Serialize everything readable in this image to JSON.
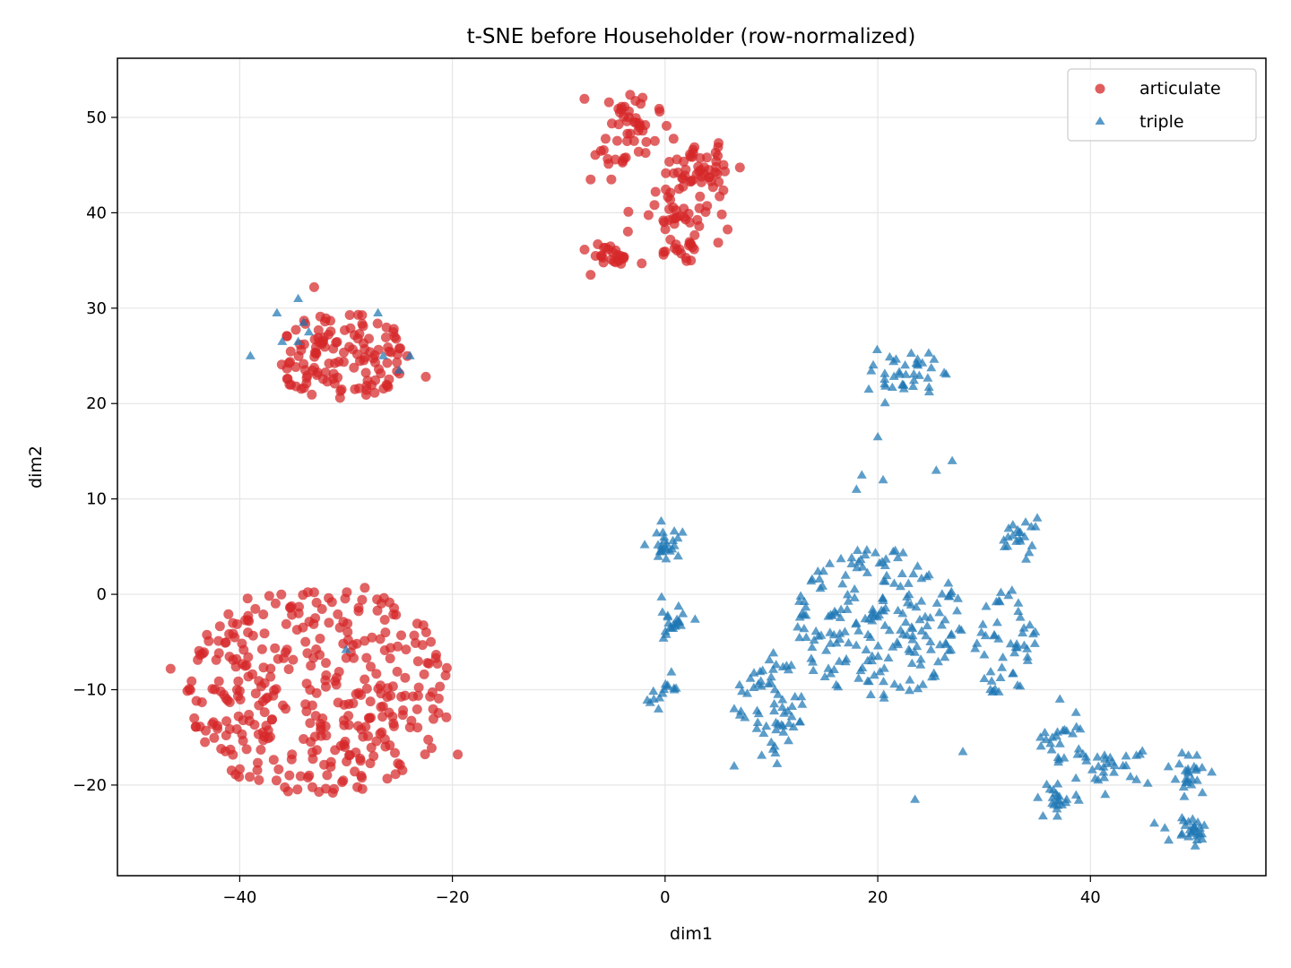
{
  "chart_data": {
    "type": "scatter",
    "title": "t-SNE before Householder (row-normalized)",
    "xlabel": "dim1",
    "ylabel": "dim2",
    "xlim": [
      -51.5,
      56.5
    ],
    "ylim": [
      -29.5,
      56.2
    ],
    "xticks": [
      -40,
      -20,
      0,
      20,
      40
    ],
    "xtick_labels": [
      "−40",
      "−20",
      "0",
      "20",
      "40"
    ],
    "yticks": [
      -20,
      -10,
      0,
      10,
      20,
      30,
      40,
      50
    ],
    "ytick_labels": [
      "−20",
      "−10",
      "0",
      "10",
      "20",
      "30",
      "40",
      "50"
    ],
    "grid": true,
    "legend_position": "top-right",
    "series": [
      {
        "name": "articulate",
        "marker": "circle",
        "color": "#d62728",
        "clusters": [
          {
            "center": [
              -32.5,
              -10.0
            ],
            "radius": [
              12.5,
              11.5
            ],
            "count": 360,
            "shape": "disk"
          },
          {
            "center": [
              -30.5,
              25.0
            ],
            "radius": [
              6.5,
              4.5
            ],
            "count": 130,
            "shape": "disk"
          },
          {
            "center": [
              -3.5,
              48.5
            ],
            "radius": [
              2.5,
              3.5
            ],
            "count": 50,
            "shape": "gauss"
          },
          {
            "center": [
              3.0,
              44.5
            ],
            "radius": [
              3.0,
              2.0
            ],
            "count": 50,
            "shape": "gauss"
          },
          {
            "center": [
              -5.0,
              35.5
            ],
            "radius": [
              1.8,
              1.2
            ],
            "count": 25,
            "shape": "gauss"
          },
          {
            "center": [
              1.0,
              40.0
            ],
            "radius": [
              3.0,
              2.5
            ],
            "count": 40,
            "shape": "gauss"
          },
          {
            "center": [
              1.5,
              36.0
            ],
            "radius": [
              2.0,
              1.5
            ],
            "count": 15,
            "shape": "gauss"
          }
        ],
        "points": [
          [
            -46.5,
            -7.8
          ],
          [
            -19.5,
            -16.8
          ],
          [
            -33.0,
            32.2
          ],
          [
            -22.5,
            22.8
          ],
          [
            -7.0,
            43.5
          ],
          [
            -7.0,
            33.5
          ]
        ]
      },
      {
        "name": "triple",
        "marker": "triangle",
        "color": "#1f77b4",
        "clusters": [
          {
            "center": [
              0.0,
              5.0
            ],
            "radius": [
              1.5,
              1.5
            ],
            "count": 25,
            "shape": "gauss"
          },
          {
            "center": [
              0.5,
              -3.0
            ],
            "radius": [
              1.5,
              2.0
            ],
            "count": 22,
            "shape": "gauss"
          },
          {
            "center": [
              0.0,
              -10.0
            ],
            "radius": [
              2.0,
              1.5
            ],
            "count": 15,
            "shape": "gauss"
          },
          {
            "center": [
              22.5,
              23.0
            ],
            "radius": [
              2.5,
              2.0
            ],
            "count": 40,
            "shape": "gauss"
          },
          {
            "center": [
              20.0,
              -3.0
            ],
            "radius": [
              8.0,
              8.0
            ],
            "count": 200,
            "shape": "disk"
          },
          {
            "center": [
              10.0,
              -12.0
            ],
            "radius": [
              3.0,
              6.0
            ],
            "count": 60,
            "shape": "disk"
          },
          {
            "center": [
              32.0,
              -5.0
            ],
            "radius": [
              3.0,
              6.0
            ],
            "count": 50,
            "shape": "disk"
          },
          {
            "center": [
              33.0,
              6.0
            ],
            "radius": [
              1.5,
              1.5
            ],
            "count": 20,
            "shape": "gauss"
          },
          {
            "center": [
              37.0,
              -16.0
            ],
            "radius": [
              2.0,
              4.0
            ],
            "count": 25,
            "shape": "gauss"
          },
          {
            "center": [
              37.0,
              -21.5
            ],
            "radius": [
              1.5,
              1.2
            ],
            "count": 20,
            "shape": "gauss"
          },
          {
            "center": [
              42.0,
              -18.0
            ],
            "radius": [
              3.0,
              1.5
            ],
            "count": 30,
            "shape": "gauss"
          },
          {
            "center": [
              49.5,
              -19.0
            ],
            "radius": [
              1.5,
              2.0
            ],
            "count": 25,
            "shape": "gauss"
          },
          {
            "center": [
              49.5,
              -24.5
            ],
            "radius": [
              1.5,
              1.2
            ],
            "count": 25,
            "shape": "gauss"
          }
        ],
        "points": [
          [
            -39.0,
            25.0
          ],
          [
            -34.5,
            31.0
          ],
          [
            -36.5,
            29.5
          ],
          [
            -36.0,
            26.5
          ],
          [
            -34.5,
            26.5
          ],
          [
            -34.0,
            28.5
          ],
          [
            -27.0,
            29.5
          ],
          [
            -26.5,
            25.0
          ],
          [
            -24.0,
            25.0
          ],
          [
            -25.0,
            23.5
          ],
          [
            -30.0,
            -5.8
          ],
          [
            -33.5,
            27.5
          ],
          [
            20.0,
            16.5
          ],
          [
            20.5,
            12.0
          ],
          [
            18.5,
            12.5
          ],
          [
            27.0,
            14.0
          ],
          [
            25.5,
            13.0
          ],
          [
            18.0,
            11.0
          ],
          [
            6.5,
            -18.0
          ],
          [
            7.0,
            -9.5
          ],
          [
            6.5,
            -12.0
          ],
          [
            28.0,
            -16.5
          ],
          [
            23.5,
            -21.5
          ],
          [
            47.0,
            -24.5
          ],
          [
            46.0,
            -24.0
          ],
          [
            35.0,
            8.0
          ]
        ]
      }
    ]
  }
}
